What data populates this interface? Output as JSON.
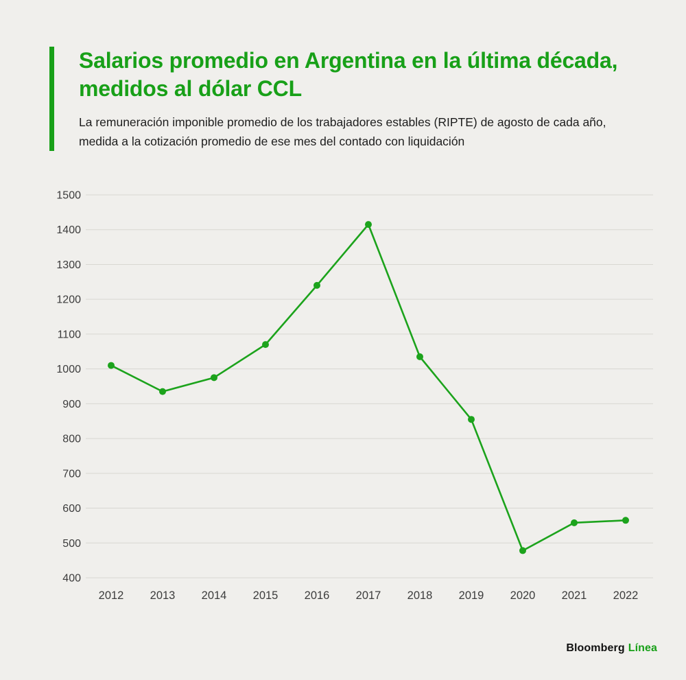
{
  "accent_color": "#18a018",
  "header": {
    "title": "Salarios promedio en Argentina en la última década, medidos al dólar CCL",
    "subtitle": "La remuneración imponible promedio de los trabajadores estables (RIPTE) de agosto de cada año, medida a la cotización promedio de ese mes del contado con liquidación"
  },
  "chart_data": {
    "type": "line",
    "x": [
      "2012",
      "2013",
      "2014",
      "2015",
      "2016",
      "2017",
      "2018",
      "2019",
      "2020",
      "2021",
      "2022"
    ],
    "values": [
      1010,
      935,
      975,
      1070,
      1240,
      1415,
      1035,
      855,
      478,
      558,
      565
    ],
    "title": "Salarios promedio en Argentina en la última década, medidos al dólar CCL",
    "xlabel": "",
    "ylabel": "",
    "ylim": [
      400,
      1500
    ],
    "ytick_step": 100,
    "yticks": [
      400,
      500,
      600,
      700,
      800,
      900,
      1000,
      1100,
      1200,
      1300,
      1400,
      1500
    ],
    "grid": true,
    "legend": "none",
    "line_color": "#1ca31c",
    "marker": "circle",
    "gridline_color": "#d8d7d2",
    "tick_label_color": "#3c3c3c"
  },
  "footer": {
    "brand_black": "Bloomberg",
    "brand_green": "Línea"
  }
}
